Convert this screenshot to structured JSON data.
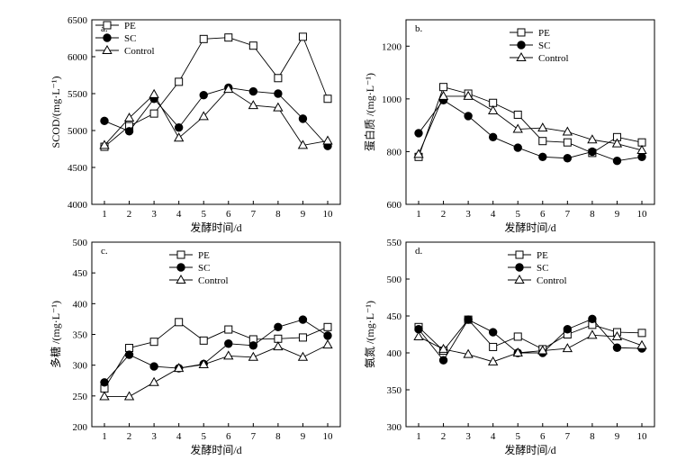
{
  "chart_data": [
    {
      "type": "line",
      "panel_label": "a.",
      "xlabel": "发酵时间/d",
      "ylabel": "SCOD/(mg·L⁻¹)",
      "x": [
        1,
        2,
        3,
        4,
        5,
        6,
        7,
        8,
        9,
        10
      ],
      "xticks": [
        "1",
        "2",
        "3",
        "4",
        "5",
        "6",
        "7",
        "8",
        "9",
        "10"
      ],
      "ylim": [
        4000,
        6500
      ],
      "yticks": [
        "4000",
        "4500",
        "5000",
        "5500",
        "6000",
        "6500"
      ],
      "legend_position": "top-left",
      "series": [
        {
          "name": "PE",
          "marker": "square",
          "values": [
            4780,
            5060,
            5230,
            5660,
            6240,
            6260,
            6150,
            5710,
            6270,
            5430
          ]
        },
        {
          "name": "SC",
          "marker": "circle",
          "values": [
            5130,
            4990,
            5430,
            5040,
            5480,
            5580,
            5530,
            5500,
            5160,
            4790
          ]
        },
        {
          "name": "Control",
          "marker": "triangle",
          "values": [
            4800,
            5170,
            5490,
            4900,
            5190,
            5560,
            5340,
            5310,
            4800,
            4860
          ]
        }
      ]
    },
    {
      "type": "line",
      "panel_label": "b.",
      "xlabel": "发酵时间/d",
      "ylabel": "蛋白质 /(mg·L⁻¹)",
      "x": [
        1,
        2,
        3,
        4,
        5,
        6,
        7,
        8,
        9,
        10
      ],
      "xticks": [
        "1",
        "2",
        "3",
        "4",
        "5",
        "6",
        "7",
        "8",
        "9",
        "10"
      ],
      "ylim": [
        600,
        1300
      ],
      "yticks": [
        "600",
        "800",
        "1000",
        "1200"
      ],
      "legend_position": "top-right",
      "series": [
        {
          "name": "PE",
          "marker": "square",
          "values": [
            780,
            1045,
            1020,
            985,
            940,
            840,
            835,
            795,
            855,
            835
          ]
        },
        {
          "name": "SC",
          "marker": "circle",
          "values": [
            870,
            995,
            935,
            855,
            815,
            780,
            775,
            800,
            765,
            780
          ]
        },
        {
          "name": "Control",
          "marker": "triangle",
          "values": [
            790,
            1010,
            1010,
            955,
            885,
            890,
            875,
            845,
            830,
            805
          ]
        }
      ]
    },
    {
      "type": "line",
      "panel_label": "c.",
      "xlabel": "发酵时间/d",
      "ylabel": "多糖 /(mg·L⁻¹)",
      "x": [
        1,
        2,
        3,
        4,
        5,
        6,
        7,
        8,
        9,
        10
      ],
      "xticks": [
        "1",
        "2",
        "3",
        "4",
        "5",
        "6",
        "7",
        "8",
        "9",
        "10"
      ],
      "ylim": [
        200,
        500
      ],
      "yticks": [
        "200",
        "250",
        "300",
        "350",
        "400",
        "450",
        "500"
      ],
      "legend_position": "top-right",
      "series": [
        {
          "name": "PE",
          "marker": "square",
          "values": [
            262,
            328,
            338,
            370,
            340,
            358,
            342,
            343,
            345,
            362
          ]
        },
        {
          "name": "SC",
          "marker": "circle",
          "values": [
            272,
            317,
            298,
            295,
            302,
            335,
            332,
            362,
            374,
            348
          ]
        },
        {
          "name": "Control",
          "marker": "triangle",
          "values": [
            249,
            249,
            272,
            295,
            301,
            315,
            313,
            330,
            313,
            333
          ]
        }
      ]
    },
    {
      "type": "line",
      "panel_label": "d.",
      "xlabel": "发酵时间/d",
      "ylabel": "氨氮 /(mg·L⁻¹)",
      "x": [
        1,
        2,
        3,
        4,
        5,
        6,
        7,
        8,
        9,
        10
      ],
      "xticks": [
        "1",
        "2",
        "3",
        "4",
        "5",
        "6",
        "7",
        "8",
        "9",
        "10"
      ],
      "ylim": [
        300,
        550
      ],
      "yticks": [
        "300",
        "350",
        "400",
        "450",
        "500",
        "550"
      ],
      "legend_position": "top-center",
      "series": [
        {
          "name": "PE",
          "marker": "square",
          "values": [
            435,
            403,
            445,
            408,
            422,
            405,
            425,
            438,
            428,
            427
          ]
        },
        {
          "name": "SC",
          "marker": "circle",
          "values": [
            432,
            390,
            445,
            428,
            400,
            400,
            432,
            446,
            407,
            406
          ]
        },
        {
          "name": "Control",
          "marker": "triangle",
          "values": [
            422,
            405,
            398,
            388,
            400,
            403,
            406,
            424,
            422,
            410
          ]
        }
      ]
    }
  ]
}
